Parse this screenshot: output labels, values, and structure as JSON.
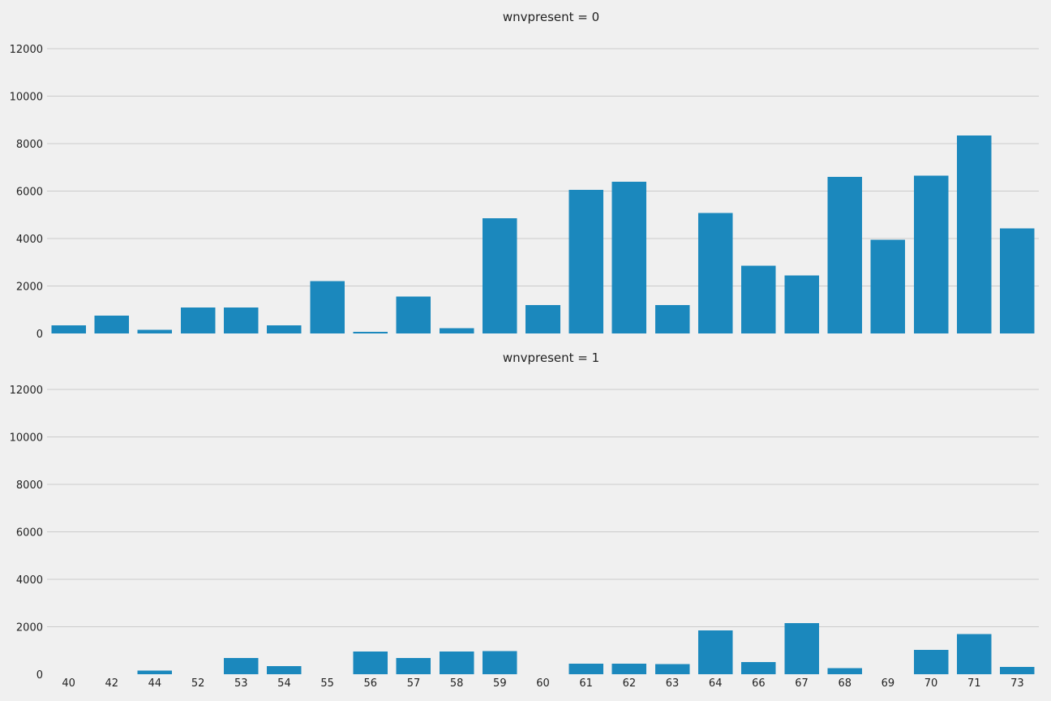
{
  "chart_data": {
    "type": "bar",
    "layout": "facet-grid-2-rows",
    "shared_x": true,
    "grid": "y-only",
    "categories": [
      "40",
      "42",
      "44",
      "52",
      "53",
      "54",
      "55",
      "56",
      "57",
      "58",
      "59",
      "60",
      "61",
      "62",
      "63",
      "64",
      "66",
      "67",
      "68",
      "69",
      "70",
      "71",
      "73"
    ],
    "ylim": [
      0,
      12000
    ],
    "yticks": [
      0,
      2000,
      4000,
      6000,
      8000,
      10000,
      12000
    ],
    "bar_color": "#1b88bd",
    "background_color": "#f0f0f0",
    "grid_color": "#cbcbcb",
    "facets": [
      {
        "title": "wnvpresent = 0",
        "values": [
          350,
          750,
          150,
          1100,
          1100,
          350,
          2200,
          60,
          1550,
          230,
          4850,
          1200,
          6050,
          6400,
          1200,
          5080,
          2850,
          2450,
          6600,
          3950,
          6650,
          8350,
          4420
        ]
      },
      {
        "title": "wnvpresent = 1",
        "values": [
          0,
          0,
          150,
          0,
          680,
          350,
          0,
          950,
          680,
          950,
          980,
          0,
          450,
          450,
          420,
          1850,
          520,
          2150,
          250,
          0,
          1020,
          1700,
          300
        ]
      }
    ]
  }
}
